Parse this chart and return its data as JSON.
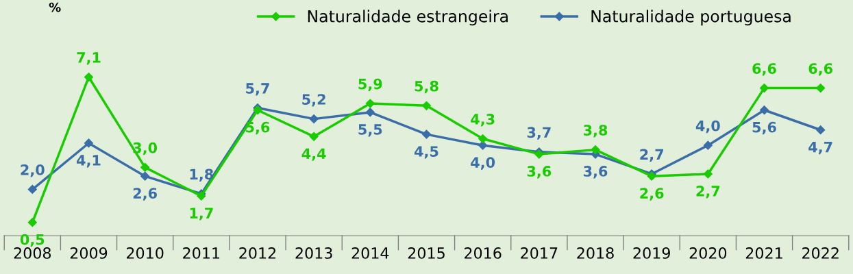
{
  "chart_data": {
    "type": "line",
    "ylabel": "%",
    "categories": [
      "2008",
      "2009",
      "2010",
      "2011",
      "2012",
      "2013",
      "2014",
      "2015",
      "2016",
      "2017",
      "2018",
      "2019",
      "2020",
      "2021",
      "2022"
    ],
    "series": [
      {
        "name": "Naturalidade estrangeira",
        "color": "#19cc00",
        "values": [
          0.5,
          7.1,
          3.0,
          1.7,
          5.6,
          4.4,
          5.9,
          5.8,
          4.3,
          3.6,
          3.8,
          2.6,
          2.7,
          6.6,
          6.6
        ],
        "value_labels": [
          "0,5",
          "7,1",
          "3,0",
          "1,7",
          "5,6",
          "4,4",
          "5,9",
          "5,8",
          "4,3",
          "3,6",
          "3,8",
          "2,6",
          "2,7",
          "6,6",
          "6,6"
        ]
      },
      {
        "name": "Naturalidade portuguesa",
        "color": "#3b6ea8",
        "values": [
          2.0,
          4.1,
          2.6,
          1.8,
          5.7,
          5.2,
          5.5,
          4.5,
          4.0,
          3.7,
          3.6,
          2.7,
          4.0,
          5.6,
          4.7
        ],
        "value_labels": [
          "2,0",
          "4,1",
          "2,6",
          "1,8",
          "5,7",
          "5,2",
          "5,5",
          "4,5",
          "4,0",
          "3,7",
          "3,6",
          "2,7",
          "4,0",
          "5,6",
          "4,7"
        ]
      }
    ],
    "ylim": [
      -0.1,
      10.6
    ],
    "tick_labels": "x",
    "marker": "diamond",
    "line_style": "solid",
    "grid": false,
    "legend": "top right"
  }
}
